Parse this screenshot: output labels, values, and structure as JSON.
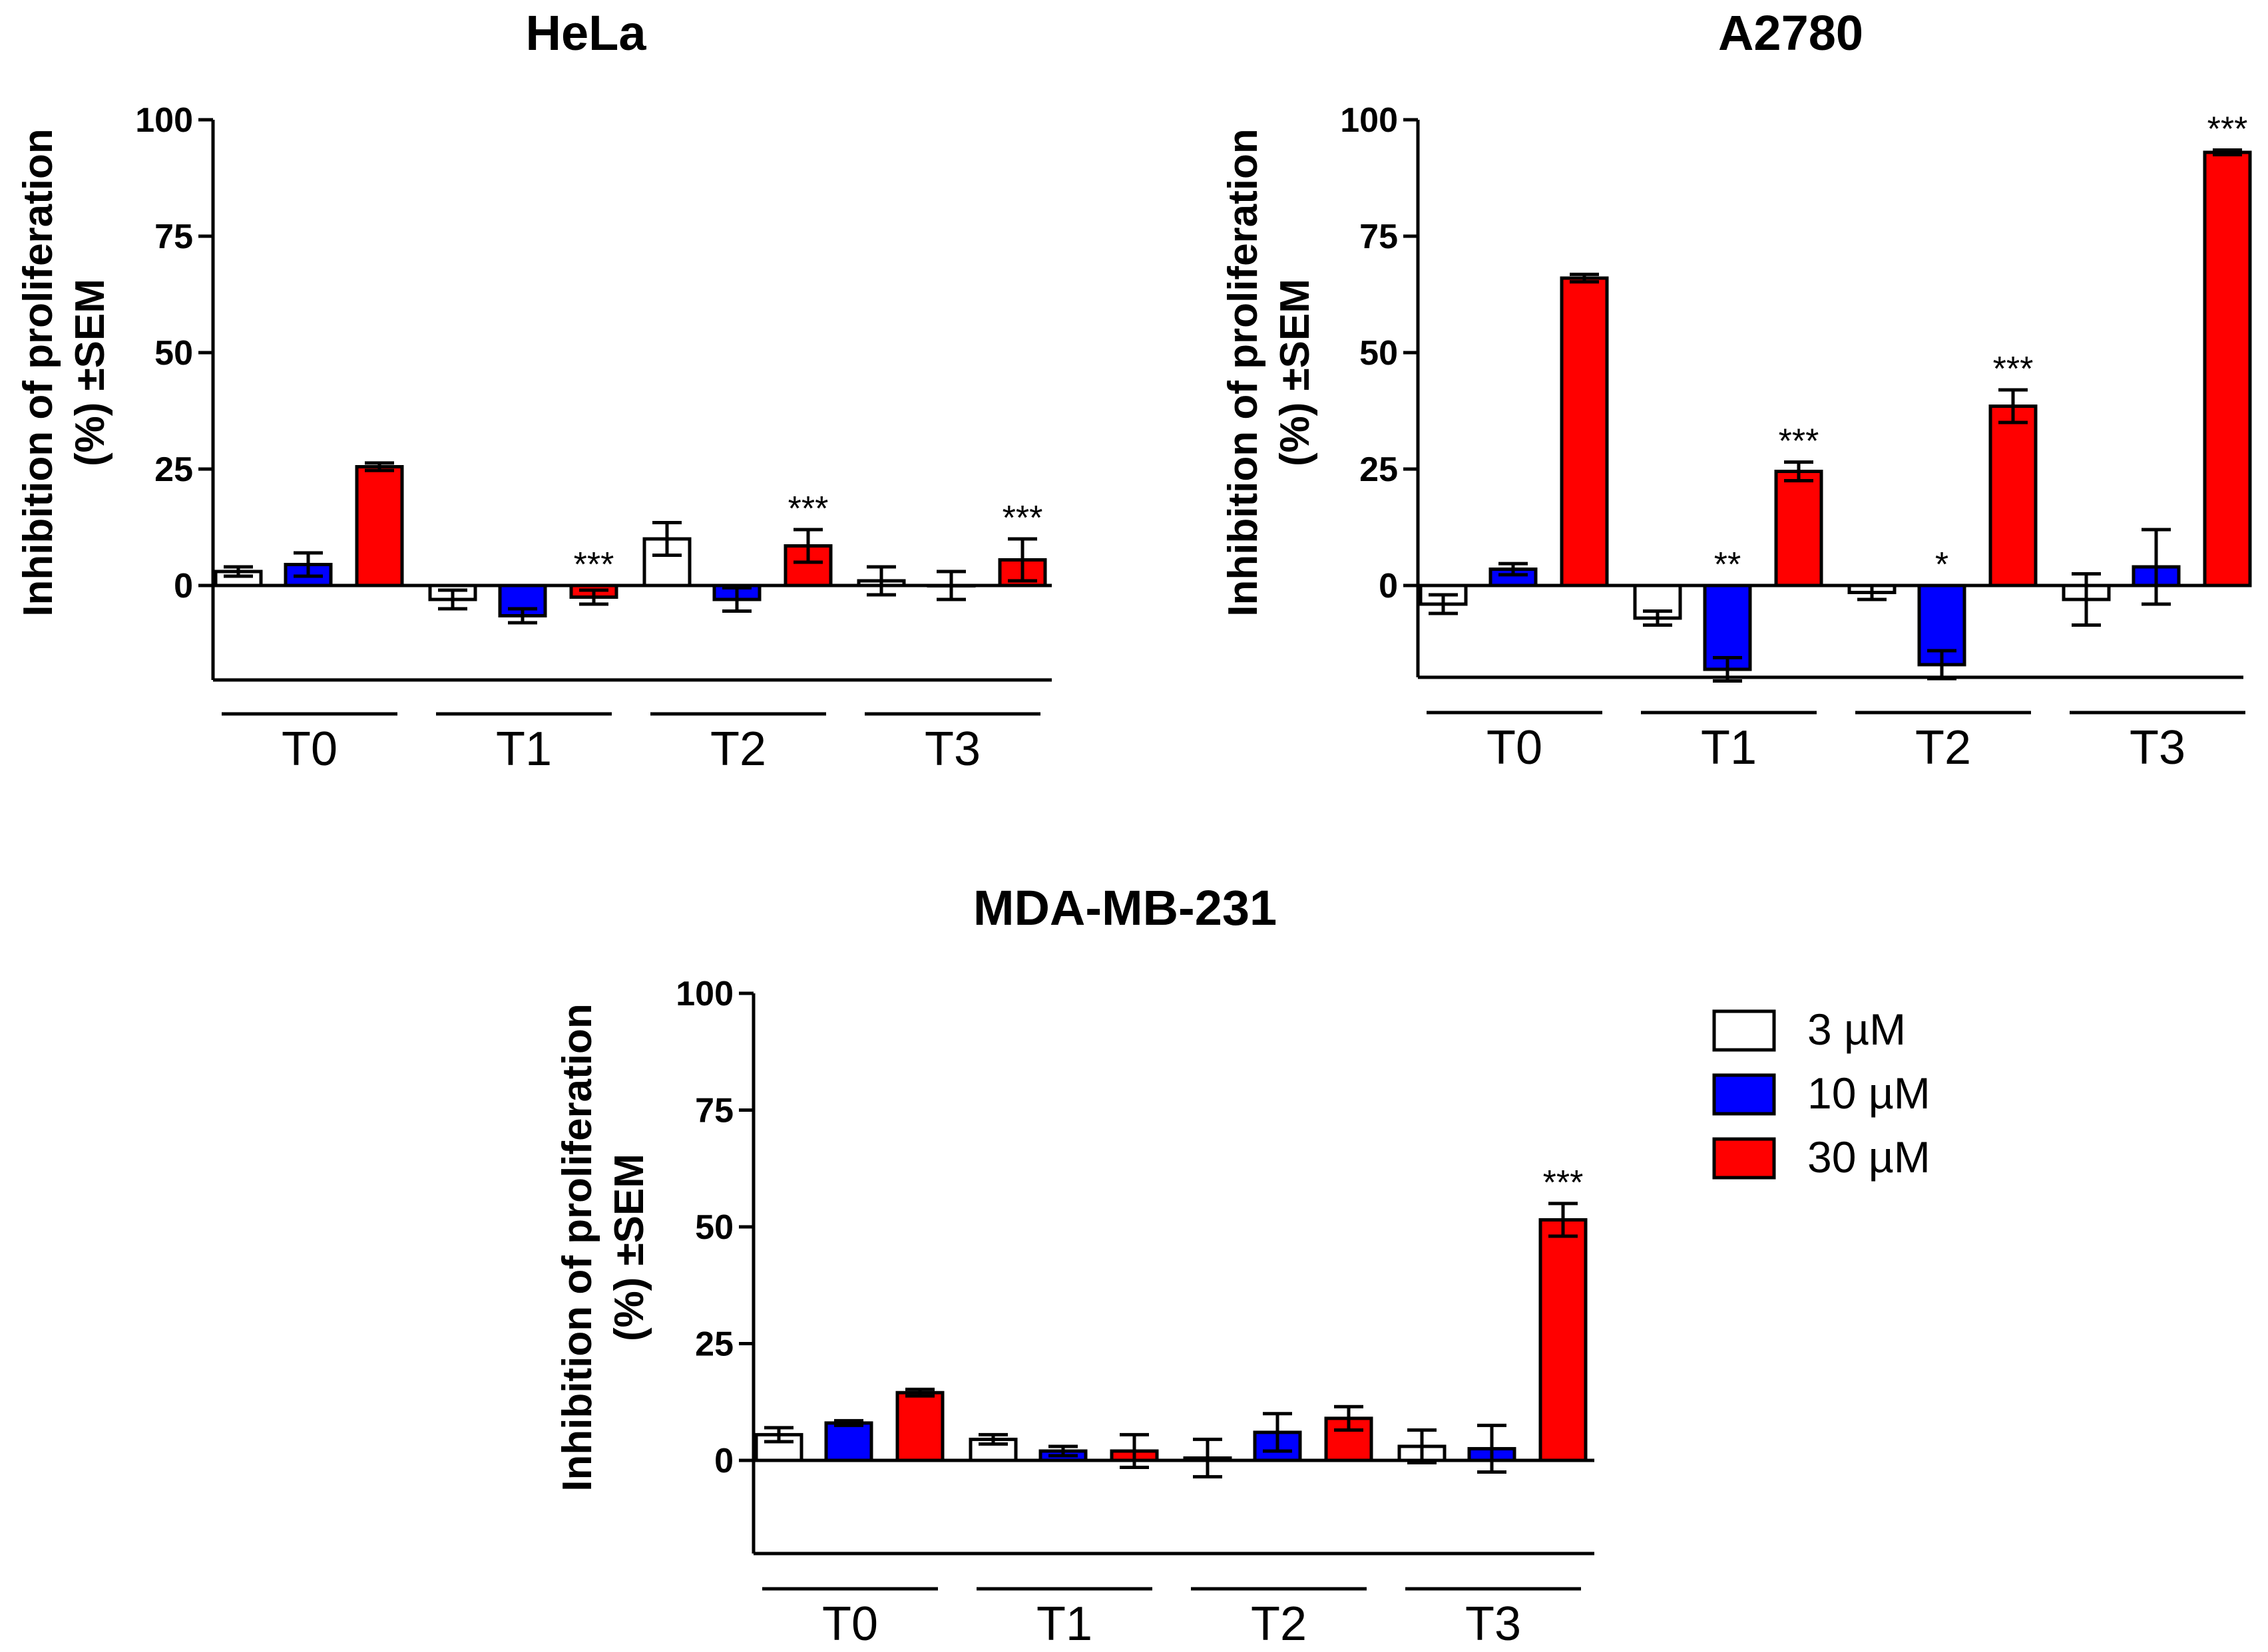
{
  "legend": [
    {
      "label": "3 µM",
      "color": "#ffffff"
    },
    {
      "label": "10 µM",
      "color": "#0000ff"
    },
    {
      "label": "30 µM",
      "color": "#ff0000"
    }
  ],
  "chart_data": [
    {
      "type": "bar",
      "title": "HeLa",
      "ylabel_line1": "Inhibition of proliferation",
      "ylabel_line2": "(%) ±SEM",
      "yticks": [
        "100",
        "75",
        "50",
        "25",
        "0"
      ],
      "ylim": [
        -20,
        100
      ],
      "categories": [
        "T0",
        "T1",
        "T2",
        "T3"
      ],
      "series": [
        {
          "name": "3 µM",
          "values": [
            3,
            -3,
            10,
            1
          ],
          "errors": [
            1,
            2,
            3.5,
            3
          ]
        },
        {
          "name": "10 µM",
          "values": [
            4.5,
            -6.5,
            -3,
            0
          ],
          "errors": [
            2.5,
            1.5,
            2.5,
            3
          ]
        },
        {
          "name": "30 µM",
          "values": [
            25.5,
            -2.5,
            8.5,
            5.5
          ],
          "errors": [
            0.8,
            1.5,
            3.5,
            4.5
          ]
        }
      ],
      "significance": [
        {
          "category": 1,
          "series": 2,
          "label": "***"
        },
        {
          "category": 2,
          "series": 2,
          "label": "***"
        },
        {
          "category": 3,
          "series": 2,
          "label": "***"
        }
      ]
    },
    {
      "type": "bar",
      "title": "A2780",
      "ylabel_line1": "Inhibition of proliferation",
      "ylabel_line2": "(%) ±SEM",
      "yticks": [
        "100",
        "75",
        "50",
        "25",
        "0"
      ],
      "ylim": [
        -20,
        100
      ],
      "categories": [
        "T0",
        "T1",
        "T2",
        "T3"
      ],
      "series": [
        {
          "name": "3 µM",
          "values": [
            -4,
            -7,
            -1.5,
            -3
          ],
          "errors": [
            2,
            1.5,
            1.5,
            5.5
          ]
        },
        {
          "name": "10 µM",
          "values": [
            3.5,
            -18,
            -17,
            4
          ],
          "errors": [
            1.2,
            2.5,
            3,
            8
          ]
        },
        {
          "name": "30 µM",
          "values": [
            66,
            24.5,
            38.5,
            93
          ],
          "errors": [
            0.8,
            2,
            3.5,
            0.5
          ]
        }
      ],
      "significance": [
        {
          "category": 1,
          "series": 1,
          "label": "**"
        },
        {
          "category": 1,
          "series": 2,
          "label": "***"
        },
        {
          "category": 2,
          "series": 1,
          "label": "*"
        },
        {
          "category": 2,
          "series": 2,
          "label": "***"
        },
        {
          "category": 3,
          "series": 2,
          "label": "***"
        }
      ]
    },
    {
      "type": "bar",
      "title": "MDA-MB-231",
      "ylabel_line1": "Inhibition of proliferation",
      "ylabel_line2": "(%) ±SEM",
      "yticks": [
        "100",
        "75",
        "50",
        "25",
        "0"
      ],
      "ylim": [
        -20,
        100
      ],
      "categories": [
        "T0",
        "T1",
        "T2",
        "T3"
      ],
      "series": [
        {
          "name": "3 µM",
          "values": [
            5.5,
            4.5,
            0.5,
            3
          ],
          "errors": [
            1.5,
            1,
            4,
            3.5
          ]
        },
        {
          "name": "10 µM",
          "values": [
            8,
            2,
            6,
            2.5
          ],
          "errors": [
            0.5,
            1,
            4,
            5
          ]
        },
        {
          "name": "30 µM",
          "values": [
            14.5,
            2,
            9,
            51.5
          ],
          "errors": [
            0.7,
            3.5,
            2.5,
            3.5
          ]
        }
      ],
      "significance": [
        {
          "category": 3,
          "series": 2,
          "label": "***"
        }
      ]
    }
  ]
}
